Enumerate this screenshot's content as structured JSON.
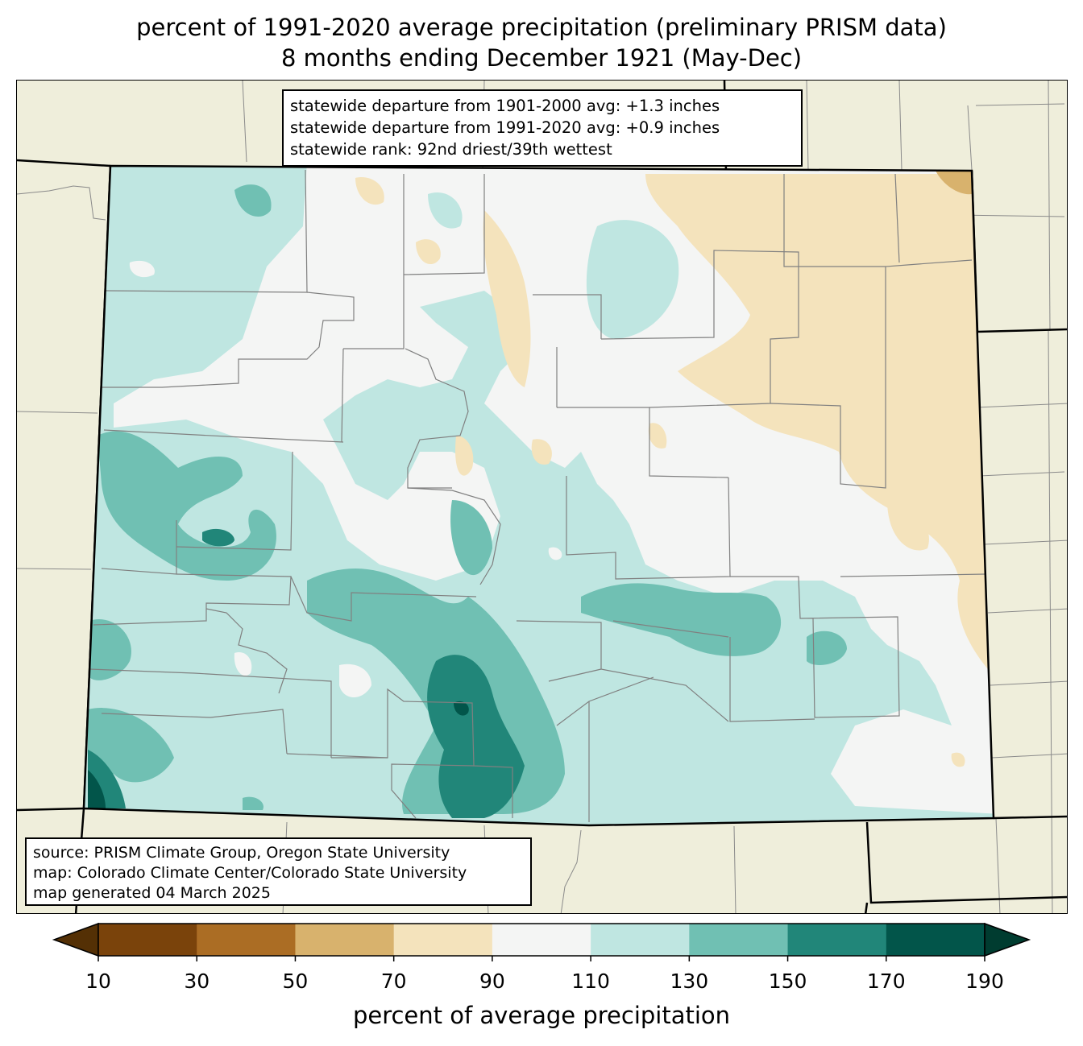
{
  "title": {
    "line1": "percent of 1991-2020 average precipitation (preliminary PRISM data)",
    "line2": "8 months ending December 1921 (May-Dec)"
  },
  "stats": {
    "line1": "statewide departure from 1901-2000 avg: +1.3 inches",
    "line2": "statewide departure from 1991-2020 avg: +0.9 inches",
    "line3": "statewide rank: 92nd driest/39th wettest"
  },
  "source": {
    "line1": "source: PRISM Climate Group, Oregon State University",
    "line2": "map: Colorado Climate Center/Colorado State University",
    "line3": "map generated 04 March 2025"
  },
  "colorbar": {
    "label": "percent of average precipitation",
    "ticks": [
      "10",
      "30",
      "50",
      "70",
      "90",
      "110",
      "130",
      "150",
      "170",
      "190"
    ],
    "colors": [
      "#7a430b",
      "#ab6d24",
      "#d8b26d",
      "#f4e3bc",
      "#f4f5f4",
      "#bfe6e1",
      "#70c0b3",
      "#218679",
      "#02554a"
    ],
    "under_color": "#543005",
    "over_color": "#003c30"
  },
  "map_colors": {
    "background": "#efeedb",
    "near_normal": "#f4f5f4",
    "wet_light": "#bfe6e1",
    "wet_medium": "#70c0b3",
    "wet_heavy": "#218679",
    "wet_extreme": "#02554a",
    "dry_light": "#f4e3bc",
    "dry_medium": "#d8b26d"
  }
}
